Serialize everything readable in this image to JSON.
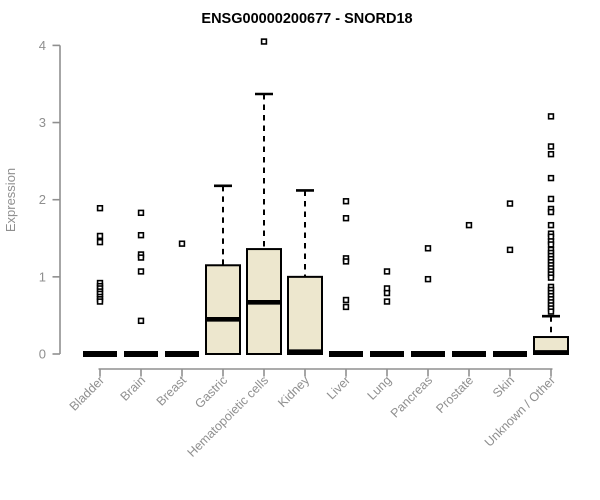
{
  "chart_data": {
    "type": "boxplot",
    "title": "ENSG00000200677 - SNORD18",
    "xlabel": "",
    "ylabel": "Expression",
    "ylim": [
      0,
      4
    ],
    "yticks": [
      0,
      1,
      2,
      3,
      4
    ],
    "grid": false,
    "legend": false,
    "categories": [
      "Bladder",
      "Brain",
      "Breast",
      "Gastric",
      "Hematopoietic cells",
      "Kidney",
      "Liver",
      "Lung",
      "Pancreas",
      "Prostate",
      "Skin",
      "Unknown / Other"
    ],
    "series": [
      {
        "category": "Bladder",
        "q1": 0,
        "median": 0,
        "q3": 0,
        "whisker_low": 0,
        "whisker_high": 0,
        "outliers": [
          1.89,
          1.53,
          1.45,
          0.92,
          0.88,
          0.85,
          0.81,
          0.78,
          0.74,
          0.71,
          0.68
        ]
      },
      {
        "category": "Brain",
        "q1": 0,
        "median": 0,
        "q3": 0,
        "whisker_low": 0,
        "whisker_high": 0,
        "outliers": [
          1.83,
          1.54,
          1.29,
          1.25,
          1.07,
          0.43
        ]
      },
      {
        "category": "Breast",
        "q1": 0,
        "median": 0,
        "q3": 0,
        "whisker_low": 0,
        "whisker_high": 0,
        "outliers": [
          1.43
        ]
      },
      {
        "category": "Gastric",
        "q1": 0,
        "median": 0.45,
        "q3": 1.15,
        "whisker_low": 0,
        "whisker_high": 2.18,
        "outliers": []
      },
      {
        "category": "Hematopoietic cells",
        "q1": 0,
        "median": 0.67,
        "q3": 1.36,
        "whisker_low": 0,
        "whisker_high": 3.37,
        "outliers": [
          4.05
        ]
      },
      {
        "category": "Kidney",
        "q1": 0,
        "median": 0.03,
        "q3": 1.0,
        "whisker_low": 0,
        "whisker_high": 2.12,
        "outliers": []
      },
      {
        "category": "Liver",
        "q1": 0,
        "median": 0,
        "q3": 0,
        "whisker_low": 0,
        "whisker_high": 0,
        "outliers": [
          1.98,
          1.76,
          1.24,
          1.2,
          0.7,
          0.61
        ]
      },
      {
        "category": "Lung",
        "q1": 0,
        "median": 0,
        "q3": 0,
        "whisker_low": 0,
        "whisker_high": 0,
        "outliers": [
          1.07,
          0.85,
          0.79,
          0.68
        ]
      },
      {
        "category": "Pancreas",
        "q1": 0,
        "median": 0,
        "q3": 0,
        "whisker_low": 0,
        "whisker_high": 0,
        "outliers": [
          1.37,
          0.97
        ]
      },
      {
        "category": "Prostate",
        "q1": 0,
        "median": 0,
        "q3": 0,
        "whisker_low": 0,
        "whisker_high": 0,
        "outliers": [
          1.67
        ]
      },
      {
        "category": "Skin",
        "q1": 0,
        "median": 0,
        "q3": 0,
        "whisker_low": 0,
        "whisker_high": 0,
        "outliers": [
          1.95,
          1.35
        ]
      },
      {
        "category": "Unknown / Other",
        "q1": 0,
        "median": 0.02,
        "q3": 0.22,
        "whisker_low": 0,
        "whisker_high": 0.49,
        "outliers": [
          3.08,
          2.69,
          2.59,
          2.28,
          2.01,
          1.88,
          1.84,
          1.67,
          1.56,
          1.52,
          1.46,
          1.42,
          1.35,
          1.31,
          1.27,
          1.23,
          1.19,
          1.15,
          1.11,
          1.07,
          1.03,
          0.99,
          0.87,
          0.83,
          0.79,
          0.75,
          0.71,
          0.67,
          0.63,
          0.59,
          0.55
        ]
      }
    ],
    "colors": {
      "box_fill": "#EDE7CE",
      "box_border": "#000000",
      "median": "#000000",
      "whisker": "#000000",
      "outlier": "#000000",
      "axis": "#8f8f8f",
      "tick_label": "#8f8f8f",
      "title": "#000000",
      "background": "#ffffff"
    }
  }
}
